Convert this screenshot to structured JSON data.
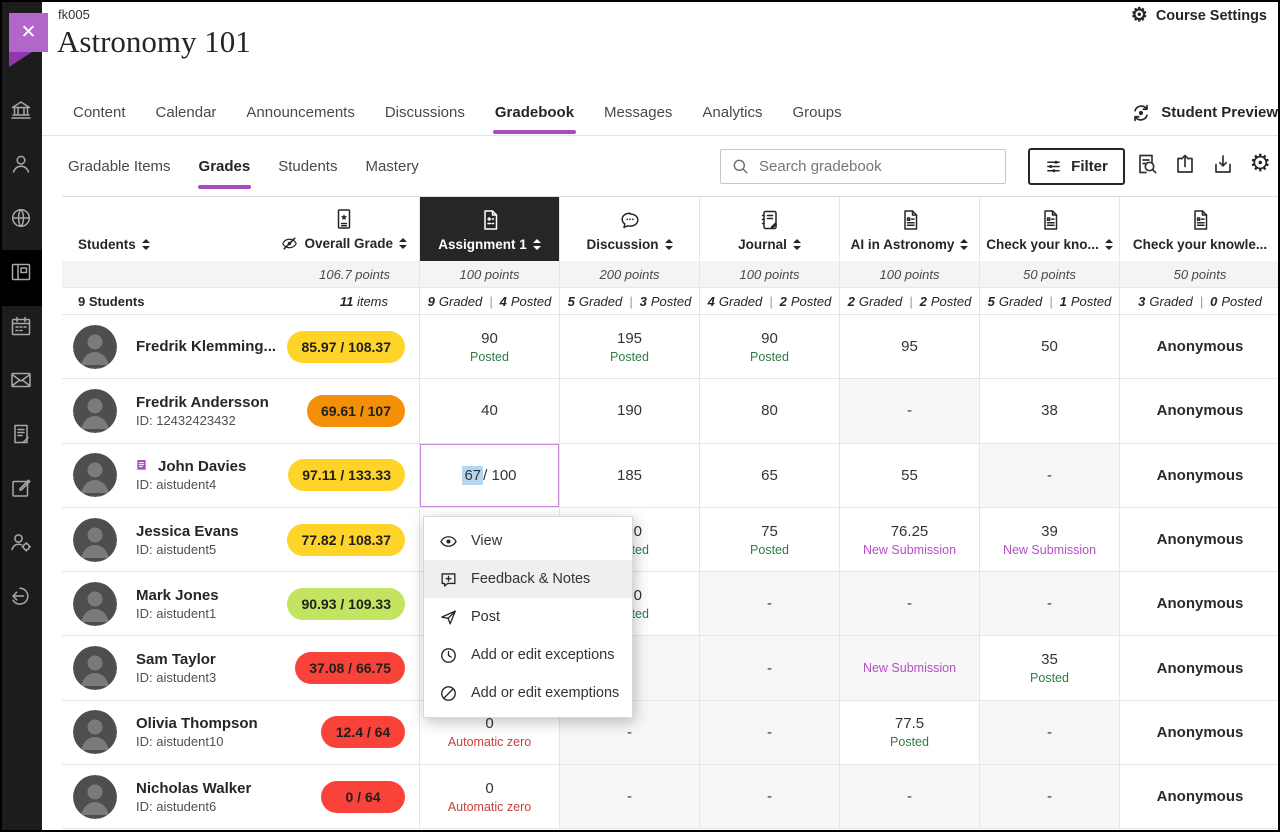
{
  "header": {
    "course_code": "fk005",
    "course_title": "Astronomy 101",
    "course_settings_label": "Course Settings",
    "close_glyph": "✕"
  },
  "nav": {
    "tabs": [
      "Content",
      "Calendar",
      "Announcements",
      "Discussions",
      "Gradebook",
      "Messages",
      "Analytics",
      "Groups"
    ],
    "active_tab": "Gradebook",
    "student_preview_label": "Student Preview"
  },
  "subnav": {
    "tabs": [
      "Gradable Items",
      "Grades",
      "Students",
      "Mastery"
    ],
    "active_tab": "Grades",
    "search_placeholder": "Search gradebook",
    "filter_label": "Filter",
    "tool_icons": [
      "report-search-icon",
      "upload-icon",
      "download-icon",
      "settings-gear-icon"
    ]
  },
  "sidebar": {
    "items": [
      "institution-icon",
      "profile-icon",
      "globe-icon",
      "courses-icon",
      "calendar-icon",
      "messages-icon",
      "grades-icon",
      "marking-icon",
      "admin-icon",
      "sign-out-icon"
    ],
    "active_item": "courses-icon"
  },
  "gradebook": {
    "students_header_label": "Students",
    "overall_grade_label": "Overall Grade",
    "overall_points": "106.7 points",
    "students_count": "9",
    "students_count_word": "Students",
    "items_count": "11",
    "items_count_word": "items",
    "graded_word": "Graded",
    "posted_word": "Posted",
    "divider": "|",
    "columns": [
      {
        "label": "Assignment 1",
        "icon": "assignment-icon",
        "points": "100 points",
        "graded": "9",
        "posted": "4",
        "selected": true,
        "sortable": true
      },
      {
        "label": "Discussion",
        "icon": "discussion-icon",
        "points": "200 points",
        "graded": "5",
        "posted": "3",
        "selected": false,
        "sortable": true
      },
      {
        "label": "Journal",
        "icon": "journal-icon",
        "points": "100 points",
        "graded": "4",
        "posted": "2",
        "selected": false,
        "sortable": true
      },
      {
        "label": "AI in Astronomy",
        "icon": "document-icon",
        "points": "100 points",
        "graded": "2",
        "posted": "2",
        "selected": false,
        "sortable": true
      },
      {
        "label": "Check your kno...",
        "icon": "document-icon",
        "points": "50 points",
        "graded": "5",
        "posted": "1",
        "selected": false,
        "sortable": true
      },
      {
        "label": "Check your knowle...",
        "icon": "document-icon",
        "points": "50 points",
        "graded": "3",
        "posted": "0",
        "selected": false,
        "sortable": false
      }
    ],
    "rows": [
      {
        "name": "Fredrik Klemming...",
        "id": "",
        "overall": "85.97 / 108.37",
        "pill": "yellow",
        "flagged": false,
        "cells": [
          {
            "type": "grade",
            "value": "90",
            "status": "Posted",
            "status_type": "posted"
          },
          {
            "type": "grade",
            "value": "195",
            "status": "Posted",
            "status_type": "posted"
          },
          {
            "type": "grade",
            "value": "90",
            "status": "Posted",
            "status_type": "posted"
          },
          {
            "type": "grade",
            "value": "95"
          },
          {
            "type": "grade",
            "value": "50"
          },
          {
            "type": "anonymous",
            "value": "Anonymous"
          }
        ]
      },
      {
        "name": "Fredrik Andersson",
        "id": "ID: 12432423432",
        "overall": "69.61 / 107",
        "pill": "orange",
        "flagged": false,
        "cells": [
          {
            "type": "grade",
            "value": "40"
          },
          {
            "type": "grade",
            "value": "190"
          },
          {
            "type": "grade",
            "value": "80"
          },
          {
            "type": "empty",
            "value": "-"
          },
          {
            "type": "grade",
            "value": "38"
          },
          {
            "type": "anonymous",
            "value": "Anonymous"
          }
        ]
      },
      {
        "name": "John Davies",
        "id": "ID: aistudent4",
        "overall": "97.11 / 133.33",
        "pill": "yellow",
        "flagged": true,
        "cells": [
          {
            "type": "edit",
            "selected_text": "67",
            "suffix": " / 100"
          },
          {
            "type": "grade",
            "value": "185"
          },
          {
            "type": "grade",
            "value": "65"
          },
          {
            "type": "grade",
            "value": "55"
          },
          {
            "type": "empty",
            "value": "-"
          },
          {
            "type": "anonymous",
            "value": "Anonymous"
          }
        ]
      },
      {
        "name": "Jessica Evans",
        "id": "ID: aistudent5",
        "overall": "77.82 / 108.37",
        "pill": "yellow",
        "flagged": false,
        "cells": [
          {
            "type": "hidden"
          },
          {
            "type": "grade",
            "value": "200",
            "status": "Posted",
            "status_type": "posted"
          },
          {
            "type": "grade",
            "value": "75",
            "status": "Posted",
            "status_type": "posted"
          },
          {
            "type": "grade",
            "value": "76.25",
            "status": "New Submission",
            "status_type": "new_submission"
          },
          {
            "type": "grade",
            "value": "39",
            "status": "New Submission",
            "status_type": "new_submission"
          },
          {
            "type": "anonymous",
            "value": "Anonymous"
          }
        ]
      },
      {
        "name": "Mark Jones",
        "id": "ID: aistudent1",
        "overall": "90.93 / 109.33",
        "pill": "green",
        "flagged": false,
        "cells": [
          {
            "type": "hidden"
          },
          {
            "type": "grade",
            "value": "190",
            "status": "Posted",
            "status_type": "posted"
          },
          {
            "type": "empty",
            "value": "-"
          },
          {
            "type": "empty",
            "value": "-"
          },
          {
            "type": "empty",
            "value": "-"
          },
          {
            "type": "anonymous",
            "value": "Anonymous"
          }
        ]
      },
      {
        "name": "Sam Taylor",
        "id": "ID: aistudent3",
        "overall": "37.08 / 66.75",
        "pill": "red",
        "flagged": false,
        "cells": [
          {
            "type": "hidden"
          },
          {
            "type": "empty",
            "value": "-"
          },
          {
            "type": "empty",
            "value": "-"
          },
          {
            "type": "status",
            "status": "New Submission",
            "status_type": "new_submission"
          },
          {
            "type": "grade",
            "value": "35",
            "status": "Posted",
            "status_type": "posted"
          },
          {
            "type": "anonymous",
            "value": "Anonymous"
          }
        ]
      },
      {
        "name": "Olivia Thompson",
        "id": "ID: aistudent10",
        "overall": "12.4 / 64",
        "pill": "red",
        "flagged": false,
        "cells": [
          {
            "type": "grade",
            "value": "0",
            "status": "Automatic zero",
            "status_type": "automatic_zero"
          },
          {
            "type": "empty",
            "value": "-"
          },
          {
            "type": "empty",
            "value": "-"
          },
          {
            "type": "grade",
            "value": "77.5",
            "status": "Posted",
            "status_type": "posted"
          },
          {
            "type": "empty",
            "value": "-"
          },
          {
            "type": "anonymous",
            "value": "Anonymous"
          }
        ]
      },
      {
        "name": "Nicholas Walker",
        "id": "ID: aistudent6",
        "overall": "0 / 64",
        "pill": "red",
        "flagged": false,
        "cells": [
          {
            "type": "grade",
            "value": "0",
            "status": "Automatic zero",
            "status_type": "automatic_zero"
          },
          {
            "type": "empty",
            "value": "-"
          },
          {
            "type": "empty",
            "value": "-"
          },
          {
            "type": "empty",
            "value": "-"
          },
          {
            "type": "empty",
            "value": "-"
          },
          {
            "type": "anonymous",
            "value": "Anonymous"
          }
        ]
      }
    ]
  },
  "context_menu": {
    "items": [
      {
        "icon": "eye-icon",
        "label": "View",
        "hover": false
      },
      {
        "icon": "feedback-icon",
        "label": "Feedback & Notes",
        "hover": true
      },
      {
        "icon": "post-icon",
        "label": "Post",
        "hover": false
      },
      {
        "icon": "clock-icon",
        "label": "Add or edit exceptions",
        "hover": false
      },
      {
        "icon": "slash-circle-icon",
        "label": "Add or edit exemptions",
        "hover": false
      }
    ]
  },
  "colors": {
    "accent_purple": "#A84CC0",
    "selected_column": "#262626",
    "posted_green": "#2D7D46",
    "new_submission": "#B44FC4",
    "automatic_zero": "#C9413B",
    "pill_yellow": "#FFD428",
    "pill_orange": "#F39008",
    "pill_green": "#C2E460",
    "pill_red": "#F9423A"
  }
}
